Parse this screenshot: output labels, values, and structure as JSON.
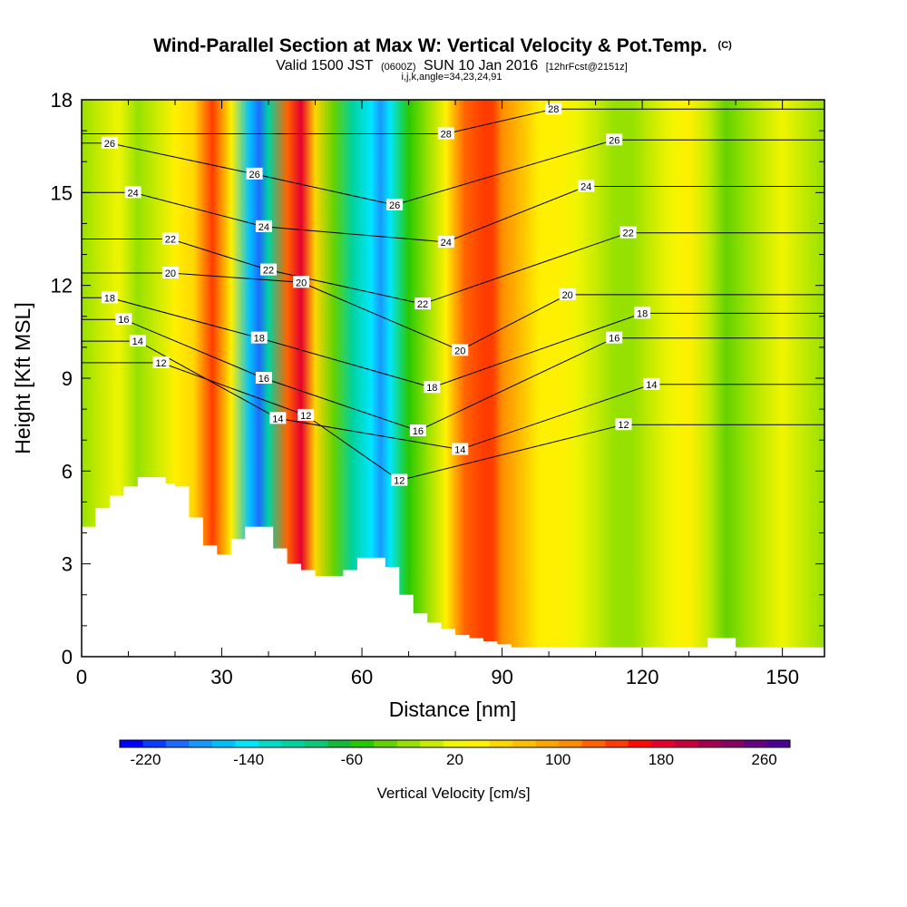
{
  "chart_data": {
    "type": "heatmap",
    "title": "Wind-Parallel Section at Max W: Vertical Velocity & Pot.Temp.",
    "title_mark": "(C)",
    "subtitle": {
      "valid": "Valid 1500 JST",
      "zulu": "(0600Z)",
      "date": "SUN 10 Jan 2016",
      "forecast": "[12hrFcst@2151z]",
      "indices": "i,j,k,angle=34,23,24,91"
    },
    "xlabel": "Distance [nm]",
    "ylabel": "Height [Kft MSL]",
    "xlim": [
      0,
      159
    ],
    "ylim": [
      0,
      18
    ],
    "x_ticks": [
      0,
      30,
      60,
      90,
      120,
      150
    ],
    "y_ticks": [
      0,
      3,
      6,
      9,
      12,
      15,
      18
    ],
    "grid": false,
    "colorbar": {
      "title": "Vertical Velocity [cm/s]",
      "tick_labels": [
        "-220",
        "-140",
        "-60",
        "20",
        "100",
        "180",
        "260"
      ],
      "levels": [
        -240,
        280
      ],
      "colors": [
        "#0000ff",
        "#0a3cff",
        "#1e6cff",
        "#1898ff",
        "#00c0ff",
        "#00e6ff",
        "#00dcc8",
        "#00d2a0",
        "#0ac878",
        "#14b93c",
        "#28c800",
        "#64d200",
        "#96e100",
        "#c8eb00",
        "#f0f500",
        "#fff000",
        "#ffd700",
        "#ffbe00",
        "#ffa500",
        "#ff8c00",
        "#ff6400",
        "#ff3c00",
        "#ff0a00",
        "#e6002d",
        "#c8003c",
        "#a50050",
        "#870064",
        "#640082",
        "#4b0096"
      ]
    },
    "w_columns": {
      "distance_nm": [
        0,
        4,
        8,
        12,
        16,
        20,
        24,
        28,
        32,
        36,
        38,
        40,
        44,
        47,
        50,
        54,
        58,
        62,
        64,
        66,
        70,
        74,
        78,
        82,
        86,
        88,
        90,
        94,
        98,
        102,
        106,
        110,
        114,
        118,
        122,
        126,
        130,
        134,
        138,
        142,
        146,
        150,
        154,
        159
      ],
      "w_cms": [
        -20,
        0,
        20,
        -10,
        0,
        30,
        60,
        140,
        40,
        -160,
        -200,
        -100,
        130,
        190,
        60,
        -40,
        -100,
        -140,
        -180,
        -150,
        -60,
        -20,
        40,
        120,
        150,
        140,
        110,
        70,
        40,
        30,
        20,
        0,
        -10,
        -20,
        0,
        20,
        30,
        0,
        -30,
        -20,
        0,
        20,
        0,
        -20
      ]
    },
    "terrain": {
      "distance_nm": [
        0,
        3,
        6,
        9,
        12,
        14,
        18,
        20,
        23,
        26,
        29,
        32,
        35,
        38,
        41,
        44,
        47,
        50,
        53,
        56,
        59,
        62,
        65,
        68,
        71,
        74,
        77,
        80,
        83,
        86,
        89,
        92,
        131,
        134,
        140,
        159
      ],
      "height_kft": [
        4.2,
        4.8,
        5.2,
        5.5,
        5.8,
        5.8,
        5.6,
        5.5,
        4.5,
        3.6,
        3.3,
        3.8,
        4.2,
        4.2,
        3.5,
        3.0,
        2.8,
        2.6,
        2.6,
        2.8,
        3.2,
        3.2,
        2.9,
        2.0,
        1.4,
        1.1,
        0.9,
        0.7,
        0.6,
        0.5,
        0.4,
        0.3,
        0.3,
        0.6,
        0.3,
        0.3
      ]
    },
    "theta_contours": {
      "levels": [
        12,
        14,
        16,
        18,
        20,
        22,
        24,
        26,
        28
      ],
      "label": "Pot.Temp.",
      "inline_labels": [
        {
          "text": "26",
          "x": 6,
          "y": 16.6
        },
        {
          "text": "24",
          "x": 11,
          "y": 15.0
        },
        {
          "text": "22",
          "x": 19,
          "y": 13.5
        },
        {
          "text": "20",
          "x": 19,
          "y": 12.4
        },
        {
          "text": "18",
          "x": 6,
          "y": 11.6
        },
        {
          "text": "16",
          "x": 9,
          "y": 10.9
        },
        {
          "text": "14",
          "x": 12,
          "y": 10.2
        },
        {
          "text": "12",
          "x": 17,
          "y": 9.5
        },
        {
          "text": "26",
          "x": 37,
          "y": 15.6
        },
        {
          "text": "24",
          "x": 39,
          "y": 13.9
        },
        {
          "text": "22",
          "x": 40,
          "y": 12.5
        },
        {
          "text": "20",
          "x": 47,
          "y": 12.1
        },
        {
          "text": "18",
          "x": 38,
          "y": 10.3
        },
        {
          "text": "16",
          "x": 39,
          "y": 9.0
        },
        {
          "text": "12",
          "x": 48,
          "y": 7.8
        },
        {
          "text": "14",
          "x": 42,
          "y": 7.7
        },
        {
          "text": "28",
          "x": 78,
          "y": 16.9
        },
        {
          "text": "26",
          "x": 67,
          "y": 14.6
        },
        {
          "text": "24",
          "x": 78,
          "y": 13.4
        },
        {
          "text": "22",
          "x": 73,
          "y": 11.4
        },
        {
          "text": "20",
          "x": 81,
          "y": 9.9
        },
        {
          "text": "18",
          "x": 75,
          "y": 8.7
        },
        {
          "text": "16",
          "x": 72,
          "y": 7.3
        },
        {
          "text": "14",
          "x": 81,
          "y": 6.7
        },
        {
          "text": "12",
          "x": 68,
          "y": 5.7
        },
        {
          "text": "28",
          "x": 101,
          "y": 17.7
        },
        {
          "text": "26",
          "x": 114,
          "y": 16.7
        },
        {
          "text": "24",
          "x": 108,
          "y": 15.2
        },
        {
          "text": "22",
          "x": 117,
          "y": 13.7
        },
        {
          "text": "20",
          "x": 104,
          "y": 11.7
        },
        {
          "text": "18",
          "x": 120,
          "y": 11.1
        },
        {
          "text": "16",
          "x": 114,
          "y": 10.3
        },
        {
          "text": "14",
          "x": 122,
          "y": 8.8
        },
        {
          "text": "12",
          "x": 116,
          "y": 7.5
        }
      ]
    }
  }
}
